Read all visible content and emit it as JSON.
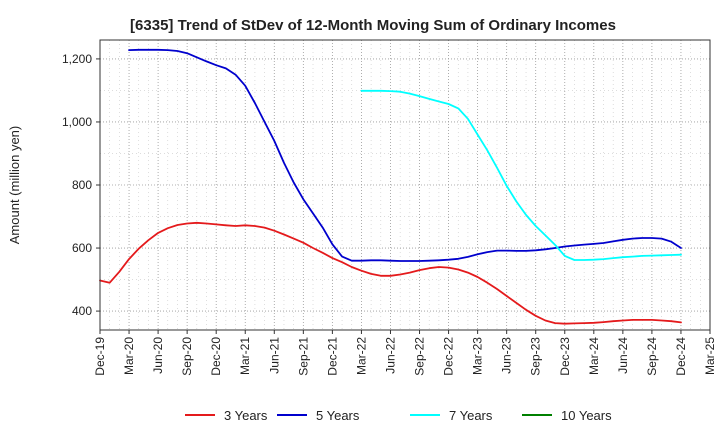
{
  "chart_data": {
    "type": "line",
    "title": "[6335]  Trend of StDev of 12-Month Moving Sum of Ordinary Incomes",
    "xlabel": "",
    "ylabel": "Amount (million yen)",
    "ylim": [
      340,
      1260
    ],
    "xlim": [
      "Dec-19",
      "Mar-25"
    ],
    "y_ticks": [
      400,
      600,
      800,
      "1,000",
      "1,200"
    ],
    "y_tick_values": [
      400,
      600,
      800,
      1000,
      1200
    ],
    "x_ticks": [
      "Dec-19",
      "Mar-20",
      "Jun-20",
      "Sep-20",
      "Dec-20",
      "Mar-21",
      "Jun-21",
      "Sep-21",
      "Dec-21",
      "Mar-22",
      "Jun-22",
      "Sep-22",
      "Dec-22",
      "Mar-23",
      "Jun-23",
      "Sep-23",
      "Dec-23",
      "Mar-24",
      "Jun-24",
      "Sep-24",
      "Dec-24",
      "Mar-25"
    ],
    "grid": true,
    "legend_position": "bottom",
    "series": [
      {
        "name": "3 Years",
        "color": "#e41a1c",
        "x": [
          "Dec-19",
          "Jan-20",
          "Feb-20",
          "Mar-20",
          "Apr-20",
          "May-20",
          "Jun-20",
          "Jul-20",
          "Aug-20",
          "Sep-20",
          "Oct-20",
          "Nov-20",
          "Dec-20",
          "Jan-21",
          "Feb-21",
          "Mar-21",
          "Apr-21",
          "May-21",
          "Jun-21",
          "Jul-21",
          "Aug-21",
          "Sep-21",
          "Oct-21",
          "Nov-21",
          "Dec-21",
          "Jan-22",
          "Feb-22",
          "Mar-22",
          "Apr-22",
          "May-22",
          "Jun-22",
          "Jul-22",
          "Aug-22",
          "Sep-22",
          "Oct-22",
          "Nov-22",
          "Dec-22",
          "Jan-23",
          "Feb-23",
          "Mar-23",
          "Apr-23",
          "May-23",
          "Jun-23",
          "Jul-23",
          "Aug-23",
          "Sep-23",
          "Oct-23",
          "Nov-23",
          "Dec-23",
          "Jan-24",
          "Feb-24",
          "Mar-24",
          "Apr-24",
          "May-24",
          "Jun-24",
          "Jul-24",
          "Aug-24",
          "Sep-24",
          "Oct-24",
          "Nov-24",
          "Dec-24"
        ],
        "values": [
          497,
          490,
          525,
          565,
          598,
          625,
          648,
          663,
          673,
          678,
          680,
          678,
          675,
          672,
          670,
          672,
          670,
          665,
          655,
          643,
          630,
          617,
          600,
          585,
          568,
          555,
          540,
          528,
          518,
          512,
          512,
          516,
          522,
          530,
          536,
          540,
          538,
          532,
          522,
          508,
          490,
          470,
          448,
          426,
          404,
          385,
          370,
          362,
          360,
          361,
          362,
          363,
          365,
          368,
          370,
          372,
          372,
          372,
          370,
          368,
          364
        ]
      },
      {
        "name": "5 Years",
        "color": "#0000cd",
        "x": [
          "Mar-20",
          "Apr-20",
          "May-20",
          "Jun-20",
          "Jul-20",
          "Aug-20",
          "Sep-20",
          "Oct-20",
          "Nov-20",
          "Dec-20",
          "Jan-21",
          "Feb-21",
          "Mar-21",
          "Apr-21",
          "May-21",
          "Jun-21",
          "Jul-21",
          "Aug-21",
          "Sep-21",
          "Oct-21",
          "Nov-21",
          "Dec-21",
          "Jan-22",
          "Feb-22",
          "Mar-22",
          "Apr-22",
          "May-22",
          "Jun-22",
          "Jul-22",
          "Aug-22",
          "Sep-22",
          "Oct-22",
          "Nov-22",
          "Dec-22",
          "Jan-23",
          "Feb-23",
          "Mar-23",
          "Apr-23",
          "May-23",
          "Jun-23",
          "Jul-23",
          "Aug-23",
          "Sep-23",
          "Oct-23",
          "Nov-23",
          "Dec-23",
          "Jan-24",
          "Feb-24",
          "Mar-24",
          "Apr-24",
          "May-24",
          "Jun-24",
          "Jul-24",
          "Aug-24",
          "Sep-24",
          "Oct-24",
          "Nov-24",
          "Dec-24"
        ],
        "values": [
          1228,
          1229,
          1229,
          1229,
          1228,
          1225,
          1218,
          1205,
          1192,
          1180,
          1170,
          1150,
          1115,
          1060,
          1000,
          940,
          870,
          808,
          755,
          710,
          665,
          612,
          573,
          560,
          560,
          561,
          561,
          560,
          559,
          559,
          559,
          560,
          561,
          563,
          566,
          572,
          580,
          587,
          592,
          592,
          591,
          591,
          593,
          596,
          600,
          605,
          608,
          611,
          613,
          616,
          621,
          626,
          630,
          632,
          632,
          630,
          620,
          600
        ]
      },
      {
        "name": "7 Years",
        "color": "#00ffff",
        "x": [
          "Mar-22",
          "Apr-22",
          "May-22",
          "Jun-22",
          "Jul-22",
          "Aug-22",
          "Sep-22",
          "Oct-22",
          "Nov-22",
          "Dec-22",
          "Jan-23",
          "Feb-23",
          "Mar-23",
          "Apr-23",
          "May-23",
          "Jun-23",
          "Jul-23",
          "Aug-23",
          "Sep-23",
          "Oct-23",
          "Nov-23",
          "Dec-23",
          "Jan-24",
          "Feb-24",
          "Mar-24",
          "Apr-24",
          "May-24",
          "Jun-24",
          "Jul-24",
          "Aug-24",
          "Sep-24",
          "Oct-24",
          "Nov-24",
          "Dec-24"
        ],
        "values": [
          1099,
          1099,
          1099,
          1098,
          1096,
          1090,
          1082,
          1073,
          1065,
          1057,
          1043,
          1010,
          960,
          910,
          855,
          797,
          748,
          705,
          670,
          640,
          610,
          575,
          562,
          562,
          563,
          565,
          568,
          571,
          573,
          575,
          576,
          577,
          578,
          579
        ]
      },
      {
        "name": "10 Years",
        "color": "#008000",
        "x": [],
        "values": []
      }
    ]
  }
}
